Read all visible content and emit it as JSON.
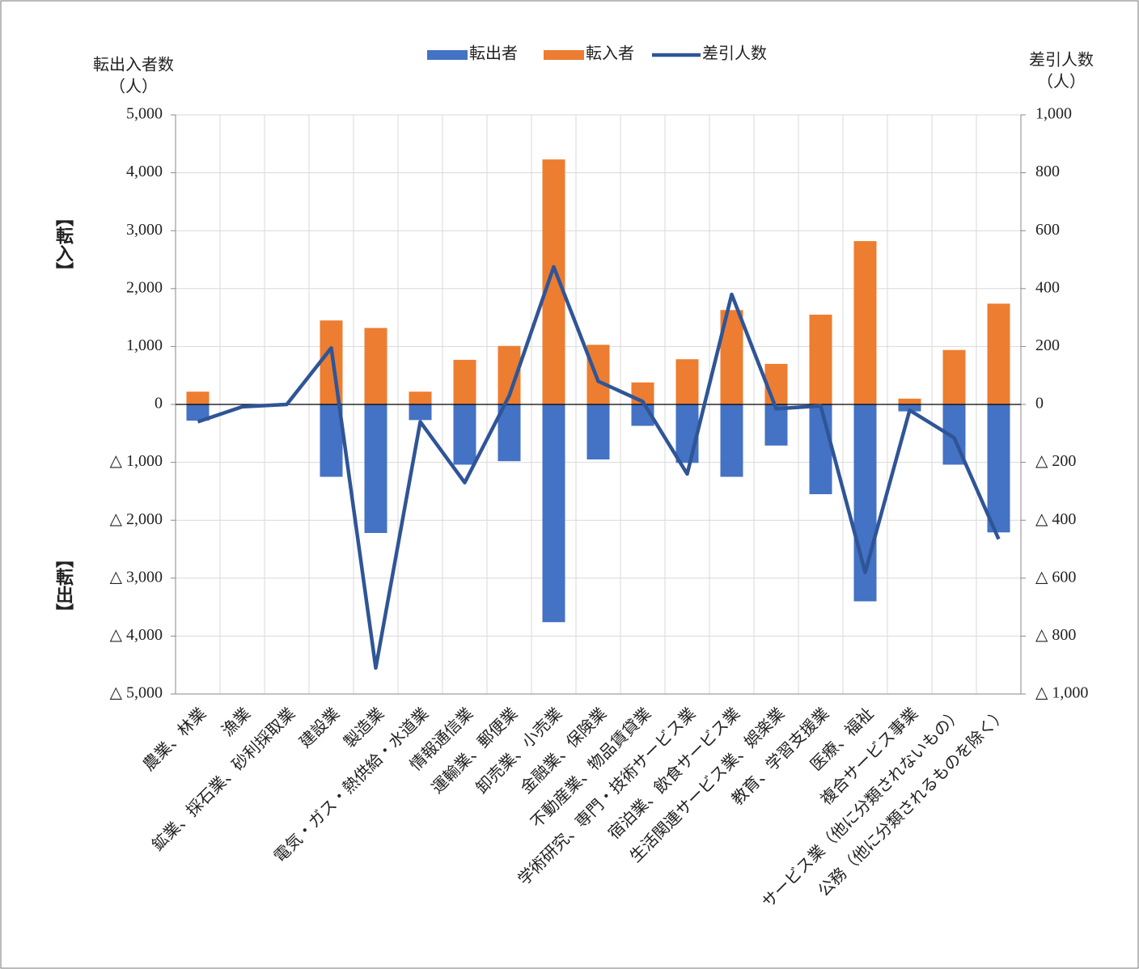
{
  "chart_data": {
    "type": "bar",
    "y_label": [
      "転出入者数",
      "（人）"
    ],
    "y2_label": [
      "差引人数",
      "（人）"
    ],
    "side_labels": [
      "【転入】",
      "【転出】"
    ],
    "categories": [
      "農業、林業",
      "漁業",
      "鉱業、採石業、砂利採取業",
      "建設業",
      "製造業",
      "電気・ガス・熱供給・水道業",
      "情報通信業",
      "運輸業、郵便業",
      "卸売業、小売業",
      "金融業、保険業",
      "不動産業、物品賃貸業",
      "学術研究、専門・技術サービス業",
      "宿泊業、飲食サービス業",
      "生活関連サービス業、娯楽業",
      "教育、学習支援業",
      "医療、福祉",
      "複合サービス事業",
      "サービス業（他に分類されないもの）",
      "公務（他に分類されるものを除く）"
    ],
    "series": [
      {
        "name": "転出者",
        "color": "#4472c4",
        "kind": "bar",
        "values": [
          -280,
          0,
          0,
          -1250,
          -2220,
          -270,
          -1040,
          -980,
          -3760,
          -950,
          -370,
          -1010,
          -1250,
          -710,
          -1550,
          -3400,
          -120,
          -1040,
          -2210
        ]
      },
      {
        "name": "転入者",
        "color": "#ed7d31",
        "kind": "bar",
        "values": [
          220,
          0,
          0,
          1450,
          1320,
          220,
          770,
          1010,
          4230,
          1030,
          380,
          780,
          1630,
          700,
          1550,
          2820,
          100,
          940,
          1740
        ]
      },
      {
        "name": "差引人数",
        "color": "#2f5597",
        "kind": "line",
        "axis": "y2",
        "values": [
          -60,
          -8,
          0,
          195,
          -910,
          -60,
          -270,
          30,
          475,
          80,
          10,
          -240,
          380,
          -15,
          -5,
          -580,
          -20,
          -115,
          -465
        ]
      }
    ],
    "ylim": [
      -5000,
      5000
    ],
    "yticks": [
      {
        "value": -5000,
        "label": "△ 5,000"
      },
      {
        "value": -4000,
        "label": "△ 4,000"
      },
      {
        "value": -3000,
        "label": "△ 3,000"
      },
      {
        "value": -2000,
        "label": "△ 2,000"
      },
      {
        "value": -1000,
        "label": "△ 1,000"
      },
      0,
      {
        "value": 1000,
        "label": "1,000"
      },
      {
        "value": 2000,
        "label": "2,000"
      },
      {
        "value": 3000,
        "label": "3,000"
      },
      {
        "value": 4000,
        "label": "4,000"
      },
      {
        "value": 5000,
        "label": "5,000"
      }
    ],
    "y2lim": [
      -1000,
      1000
    ],
    "y2ticks": [
      {
        "value": -1000,
        "label": "△ 1,000"
      },
      {
        "value": -800,
        "label": "△ 800"
      },
      {
        "value": -600,
        "label": "△ 600"
      },
      {
        "value": -400,
        "label": "△ 400"
      },
      {
        "value": -200,
        "label": "△ 200"
      },
      0,
      200,
      400,
      600,
      800,
      {
        "value": 1000,
        "label": "1,000"
      }
    ],
    "grid": true,
    "legend": "top"
  }
}
